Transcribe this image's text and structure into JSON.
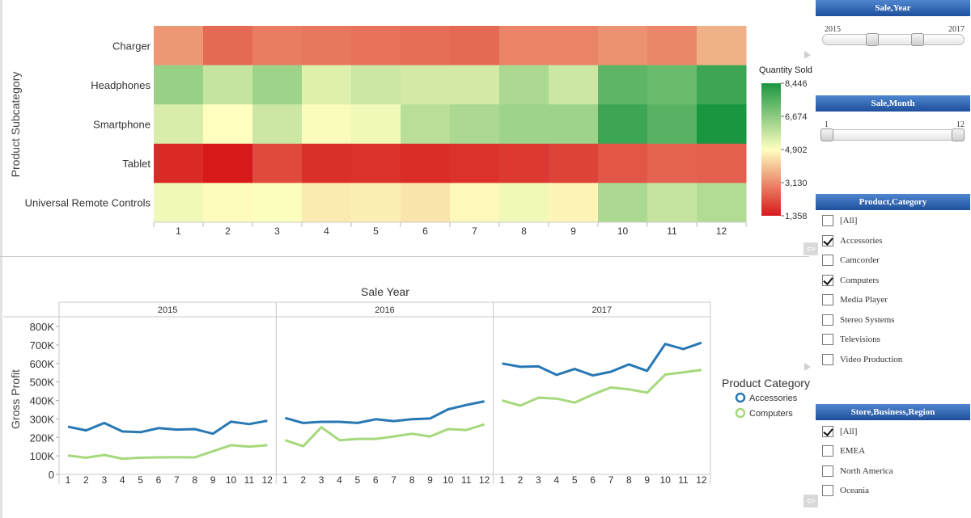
{
  "chart_data": [
    {
      "type": "heatmap",
      "ylabel": "Product Subcategory",
      "xlabel": "",
      "x": [
        "1",
        "2",
        "3",
        "4",
        "5",
        "6",
        "7",
        "8",
        "9",
        "10",
        "11",
        "12"
      ],
      "y": [
        "Charger",
        "Headphones",
        "Smartphone",
        "Tablet",
        "Universal Remote Controls"
      ],
      "values": [
        [
          3300,
          2600,
          2900,
          2800,
          2750,
          2650,
          2600,
          3000,
          3000,
          3200,
          3050,
          3700
        ],
        [
          6500,
          5800,
          6400,
          5400,
          5700,
          5600,
          5600,
          6200,
          5700,
          7400,
          7200,
          7900
        ],
        [
          5500,
          4900,
          5700,
          5000,
          5100,
          6000,
          6200,
          6400,
          6400,
          7900,
          7500,
          8446
        ],
        [
          1600,
          1358,
          2100,
          1700,
          1750,
          1650,
          1750,
          1850,
          2000,
          2300,
          2500,
          2450
        ],
        [
          5100,
          4850,
          4950,
          4600,
          4650,
          4500,
          4800,
          5100,
          4750,
          6200,
          5800,
          6100
        ]
      ],
      "legend": {
        "title": "Quantity Sold",
        "ticks": [
          "8,446",
          "6,674",
          "4,902",
          "3,130",
          "1,358"
        ],
        "min": 1358,
        "max": 8446,
        "placement": "right"
      },
      "colors": {
        "low": "#d7191c",
        "mid": "#ffffbf",
        "high": "#1a9641"
      }
    },
    {
      "type": "line",
      "title": "Sale Year",
      "ylabel": "Gross Profit",
      "panels": [
        "2015",
        "2016",
        "2017"
      ],
      "x": [
        "1",
        "2",
        "3",
        "4",
        "5",
        "6",
        "7",
        "8",
        "9",
        "10",
        "11",
        "12"
      ],
      "yticks": [
        "800K",
        "700K",
        "600K",
        "500K",
        "400K",
        "300K",
        "200K",
        "100K",
        "0"
      ],
      "ylim": [
        0,
        800000
      ],
      "series": [
        {
          "name": "Accessories",
          "color": "#2878b4",
          "values": [
            [
              258000,
              238000,
              278000,
              232000,
              228000,
              250000,
              242000,
              245000,
              220000,
              285000,
              272000,
              290000
            ],
            [
              305000,
              278000,
              284000,
              284000,
              278000,
              298000,
              288000,
              298000,
              302000,
              352000,
              375000,
              395000
            ],
            [
              600000,
              582000,
              584000,
              538000,
              570000,
              535000,
              555000,
              595000,
              560000,
              705000,
              678000,
              712000
            ]
          ]
        },
        {
          "name": "Computers",
          "color": "#a5d97c",
          "values": [
            [
              102000,
              90000,
              105000,
              85000,
              90000,
              92000,
              93000,
              92000,
              125000,
              158000,
              150000,
              158000
            ],
            [
              185000,
              152000,
              255000,
              185000,
              192000,
              192000,
              205000,
              220000,
              205000,
              245000,
              240000,
              270000
            ],
            [
              400000,
              372000,
              415000,
              410000,
              388000,
              432000,
              470000,
              460000,
              442000,
              540000,
              552000,
              565000
            ]
          ]
        }
      ],
      "legend": {
        "title": "Product Category",
        "placement": "right"
      }
    }
  ],
  "filters": {
    "sale_year": {
      "title": "Sale,Year",
      "min_label": "2015",
      "max_label": "2017"
    },
    "sale_month": {
      "title": "Sale,Month",
      "min_label": "1",
      "max_label": "12"
    },
    "product_category": {
      "title": "Product,Category",
      "items": [
        {
          "label": "[All]",
          "checked": false
        },
        {
          "label": "Accessories",
          "checked": true
        },
        {
          "label": "Camcorder",
          "checked": false
        },
        {
          "label": "Computers",
          "checked": true
        },
        {
          "label": "Media Player",
          "checked": false
        },
        {
          "label": "Stereo Systems",
          "checked": false
        },
        {
          "label": "Televisions",
          "checked": false
        },
        {
          "label": "Video Production",
          "checked": false
        }
      ]
    },
    "store_region": {
      "title": "Store,Business,Region",
      "items": [
        {
          "label": "[All]",
          "checked": true
        },
        {
          "label": "EMEA",
          "checked": false
        },
        {
          "label": "North America",
          "checked": false
        },
        {
          "label": "Oceania",
          "checked": false
        }
      ]
    }
  },
  "icons": {
    "back": "back-arrow-icon",
    "collapse": "collapse-arrow-icon"
  }
}
